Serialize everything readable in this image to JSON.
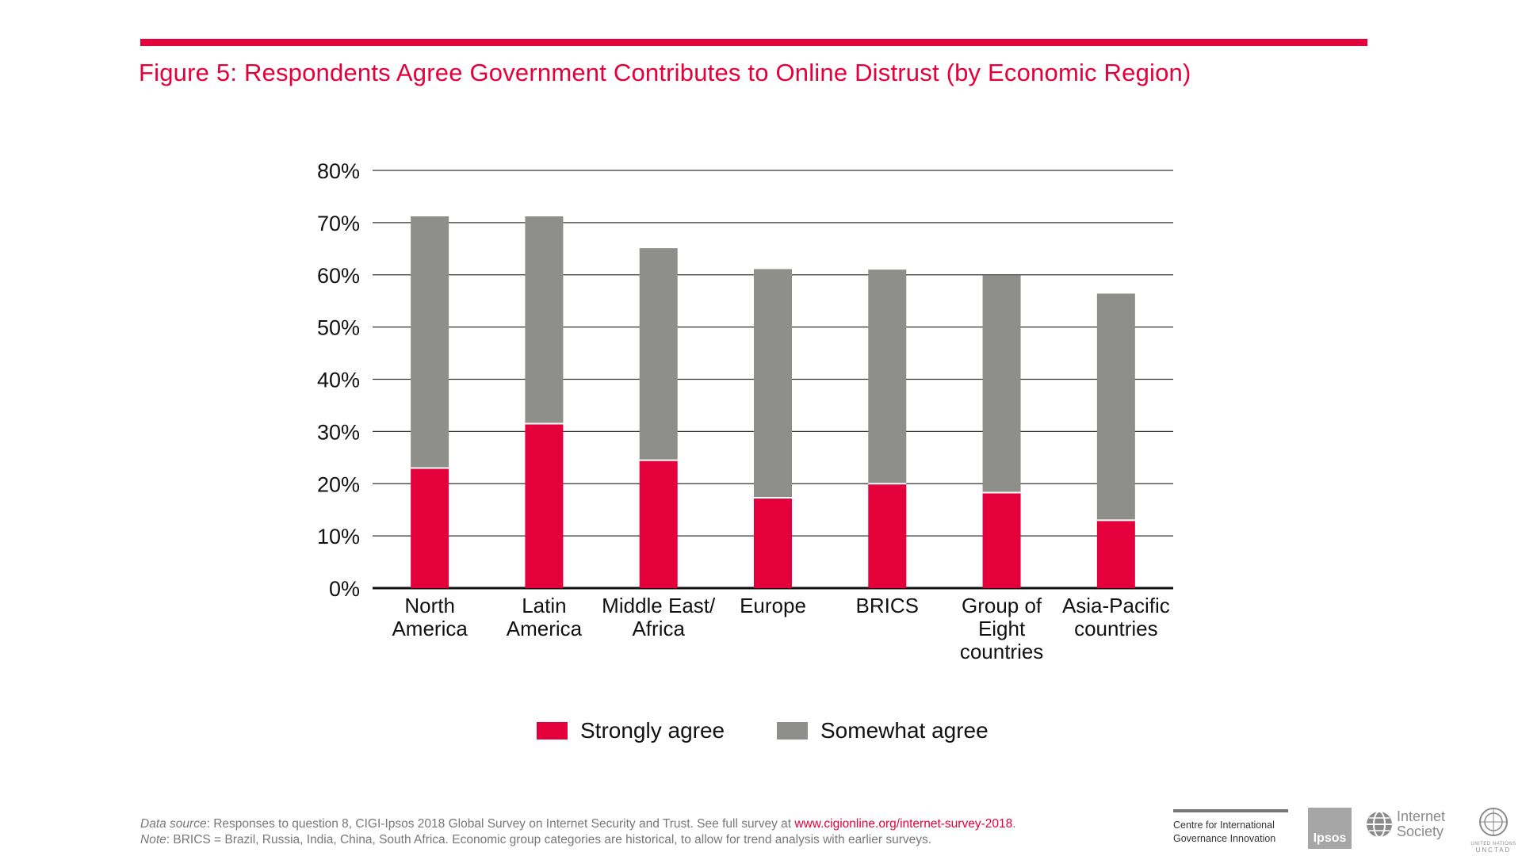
{
  "figure": {
    "title": "Figure 5: Respondents Agree Government Contributes to Online Distrust (by Economic Region)"
  },
  "colors": {
    "accent": "#e4003a",
    "strongly": "#e4003a",
    "somewhat": "#8e8e8b",
    "grid": "#333333"
  },
  "chart_data": {
    "type": "bar",
    "stacked": true,
    "categories": [
      [
        "North",
        "America"
      ],
      [
        "Latin",
        "America"
      ],
      [
        "Middle East/",
        "Africa"
      ],
      [
        "Europe"
      ],
      [
        "BRICS"
      ],
      [
        "Group of",
        "Eight",
        "countries"
      ],
      [
        "Asia-Pacific",
        "countries"
      ]
    ],
    "series": [
      {
        "name": "Strongly agree",
        "color": "#e4003a",
        "values": [
          23,
          31.5,
          24.5,
          17.3,
          20,
          18.3,
          13
        ]
      },
      {
        "name": "Somewhat agree",
        "color": "#8e8e8b",
        "values": [
          48.2,
          39.7,
          40.6,
          43.8,
          41,
          41.6,
          43.4
        ]
      }
    ],
    "ylim": [
      0,
      80
    ],
    "yticks": [
      0,
      10,
      20,
      30,
      40,
      50,
      60,
      70,
      80
    ],
    "ytick_labels": [
      "0%",
      "10%",
      "20%",
      "30%",
      "40%",
      "50%",
      "60%",
      "70%",
      "80%"
    ],
    "xlabel": "",
    "ylabel": "",
    "legend_position": "bottom-center",
    "grid": true
  },
  "legend": {
    "strongly": "Strongly agree",
    "somewhat": "Somewhat agree"
  },
  "footer": {
    "source_label": "Data source",
    "source_text": ": Responses to question 8, CIGI-Ipsos 2018 Global Survey on Internet Security and Trust. See full survey at ",
    "source_link": "www.cigionline.org/internet-survey-2018",
    "source_end": ".",
    "note_label": "Note",
    "note_text": ": BRICS = Brazil, Russia, India, China, South Africa. Economic group categories are historical, to allow for trend analysis with earlier surveys."
  },
  "logos": {
    "cigi_line1": "Centre for International",
    "cigi_line2": "Governance Innovation",
    "ipsos": "Ipsos",
    "isoc_line1": "Internet",
    "isoc_line2": "Society",
    "un_line1": "UNITED NATIONS",
    "un_line2": "UNCTAD"
  }
}
